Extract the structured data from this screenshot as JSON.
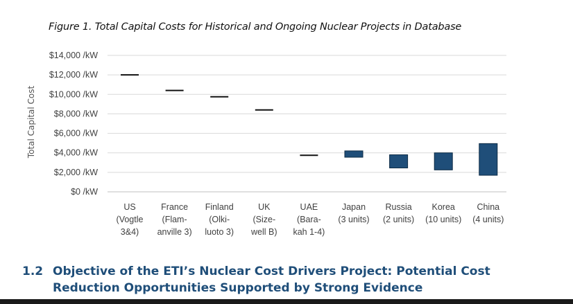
{
  "figure_title": "Figure 1. Total Capital Costs for Historical and Ongoing Nuclear Projects in Database",
  "section": {
    "number": "1.2",
    "line1": "Objective of the ETI’s Nuclear Cost Drivers Project: Potential Cost",
    "line2": "Reduction Opportunities Supported by Strong Evidence"
  },
  "colors": {
    "bar": "#1f4e79",
    "grid": "#d9d9d9",
    "text": "#404040",
    "heading": "#1f4e79"
  },
  "chart_data": {
    "type": "bar",
    "ylabel": "Total Capital Cost",
    "ylim": [
      0,
      14000
    ],
    "ytick_values": [
      0,
      2000,
      4000,
      6000,
      8000,
      10000,
      12000,
      14000
    ],
    "ytick_labels": [
      "$0 /kW",
      "$2,000 /kW",
      "$4,000 /kW",
      "$6,000 /kW",
      "$8,000 /kW",
      "$10,000 /kW",
      "$12,000 /kW",
      "$14,000 /kW"
    ],
    "grid": true,
    "legend": "none",
    "categories": [
      [
        "US",
        "(Vogtle",
        "3&4)"
      ],
      [
        "France",
        "(Flam-",
        "anville 3)"
      ],
      [
        "Finland",
        "(Olki-",
        "luoto 3)"
      ],
      [
        "UK",
        "(Size-",
        "well B)"
      ],
      [
        "UAE",
        "(Bara-",
        "kah 1-4)"
      ],
      [
        "Japan",
        "(3 units)"
      ],
      [
        "Russia",
        "(2 units)"
      ],
      [
        "Korea",
        "(10 units)"
      ],
      [
        "China",
        "(4 units)"
      ]
    ],
    "series": [
      {
        "low": [
          12000,
          10400,
          9750,
          8400,
          3750,
          3550,
          2450,
          2250,
          1700
        ],
        "high": [
          12000,
          10400,
          9750,
          8400,
          3750,
          4200,
          3800,
          4000,
          4950
        ]
      }
    ]
  }
}
